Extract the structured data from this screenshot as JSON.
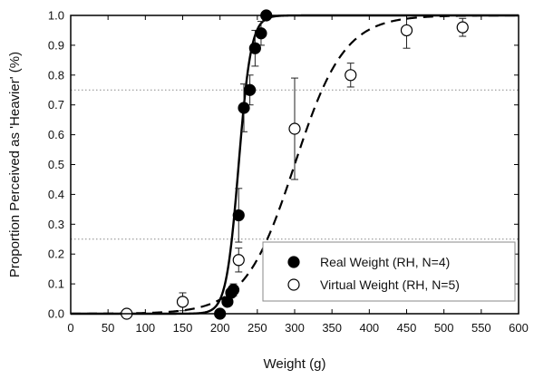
{
  "chart_data": {
    "type": "scatter",
    "title": "",
    "xlabel": "Weight (g)",
    "ylabel": "Proportion Perceived as 'Heavier' (%)",
    "xlim": [
      0,
      600
    ],
    "ylim": [
      0.0,
      1.0
    ],
    "x_ticks": [
      0,
      50,
      100,
      150,
      200,
      250,
      300,
      350,
      400,
      450,
      500,
      550,
      600
    ],
    "y_ticks": [
      0.0,
      0.1,
      0.2,
      0.3,
      0.4,
      0.5,
      0.6,
      0.7,
      0.8,
      0.9,
      1.0
    ],
    "x_tick_labels": [
      "0",
      "50",
      "100",
      "150",
      "200",
      "250",
      "300",
      "350",
      "400",
      "450",
      "500",
      "550",
      "600"
    ],
    "y_tick_labels": [
      "0.0",
      "0.1",
      "0.2",
      "0.3",
      "0.4",
      "0.5",
      "0.6",
      "0.7",
      "0.8",
      "0.9",
      "1.0"
    ],
    "grid": false,
    "reference_lines": [
      0.25,
      0.75
    ],
    "legend_placement": "bottom-right",
    "series": [
      {
        "name": "Real Weight (RH, N=4)",
        "marker": "filled-circle",
        "curve": "solid",
        "x": [
          200,
          210,
          215,
          218,
          225,
          232,
          240,
          247,
          255,
          262
        ],
        "y": [
          0.0,
          0.04,
          0.07,
          0.08,
          0.33,
          0.69,
          0.75,
          0.89,
          0.94,
          1.0
        ],
        "yerr": [
          0.0,
          0.0,
          0.0,
          0.02,
          0.09,
          0.08,
          0.05,
          0.06,
          0.04,
          0.0
        ],
        "fit_midpoint": 225,
        "fit_slope": 0.12
      },
      {
        "name": "Virtual Weight (RH, N=5)",
        "marker": "open-circle",
        "curve": "dashed",
        "x": [
          75,
          150,
          225,
          300,
          375,
          450,
          525
        ],
        "y": [
          0.0,
          0.04,
          0.18,
          0.62,
          0.8,
          0.95,
          0.96
        ],
        "yerr": [
          0.0,
          0.03,
          0.04,
          0.17,
          0.04,
          0.06,
          0.03
        ],
        "fit_midpoint": 300,
        "fit_slope": 0.03
      }
    ],
    "colors": {
      "axis": "#000000",
      "series": "#000000",
      "reference_line": "#888888",
      "background": "#ffffff"
    }
  }
}
